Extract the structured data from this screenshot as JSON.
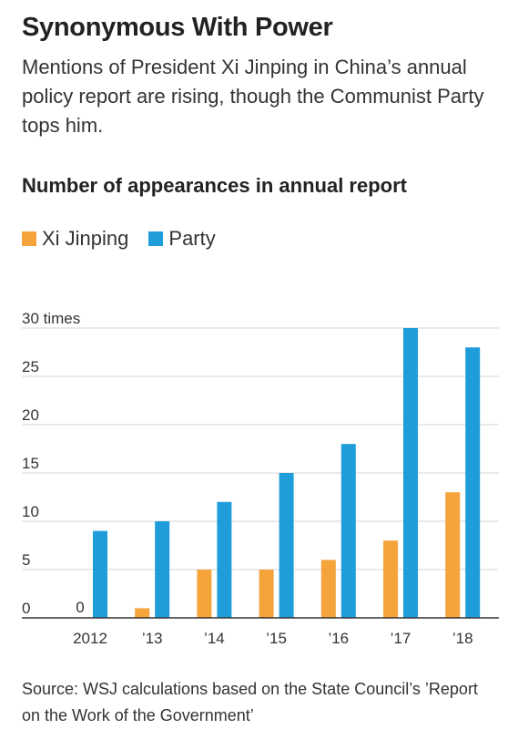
{
  "chart_data": {
    "type": "bar",
    "title": "Synonymous With Power",
    "subtitle": "Mentions of President Xi Jinping in China’s annual policy report are rising, though the Communist Party tops him.",
    "chart_title": "Number of appearances in annual report",
    "categories": [
      "2012",
      "’13",
      "’14",
      "’15",
      "’16",
      "’17",
      "’18"
    ],
    "series": [
      {
        "name": "Xi Jinping",
        "color": "#f5a33b",
        "values": [
          0,
          1,
          5,
          5,
          6,
          8,
          13
        ]
      },
      {
        "name": "Party",
        "color": "#1f9ddb",
        "values": [
          9,
          10,
          12,
          15,
          18,
          30,
          28
        ]
      }
    ],
    "y_ticks": [
      {
        "value": 0,
        "label": "0"
      },
      {
        "value": 5,
        "label": "5"
      },
      {
        "value": 10,
        "label": "10"
      },
      {
        "value": 15,
        "label": "15"
      },
      {
        "value": 20,
        "label": "20"
      },
      {
        "value": 25,
        "label": "25"
      },
      {
        "value": 30,
        "label": "30 times"
      }
    ],
    "annotations": [
      {
        "category": "2012",
        "series": "Xi Jinping",
        "text": "0"
      }
    ],
    "ylim": [
      0,
      30
    ],
    "xlabel": "",
    "ylabel": "",
    "grid": true,
    "legend": "top-left",
    "source": "Source: WSJ calculations based on the State Council’s ’Report on the Work of the Government’"
  }
}
